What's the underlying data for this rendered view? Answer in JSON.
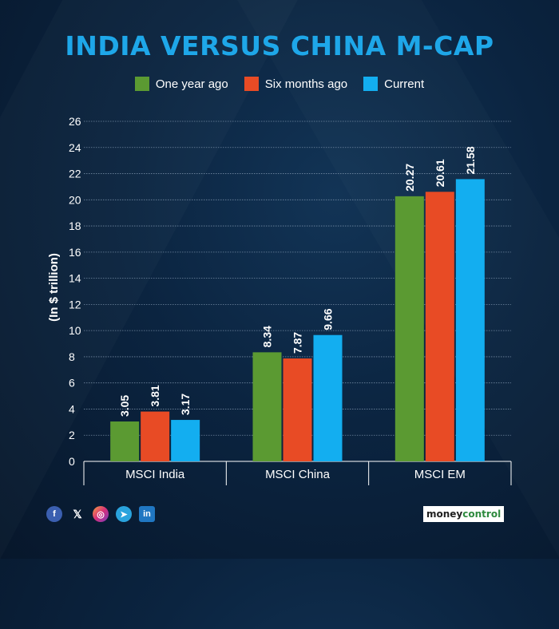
{
  "colors": {
    "title": "#1ea7e9",
    "one_year_ago": "#5b9a32",
    "six_months_ago": "#e84b25",
    "current": "#13aef0",
    "gridline": "#8aa0b8"
  },
  "chart_data": {
    "type": "bar",
    "title": "INDIA VERSUS CHINA M-CAP",
    "ylabel": "(In $ trillion)",
    "xlabel": "",
    "ylim": [
      0,
      26
    ],
    "yticks": [
      0,
      2,
      4,
      6,
      8,
      10,
      12,
      14,
      16,
      18,
      20,
      22,
      24,
      26
    ],
    "categories": [
      "MSCI India",
      "MSCI China",
      "MSCI EM"
    ],
    "series": [
      {
        "name": "One year ago",
        "values": [
          3.05,
          8.34,
          20.27
        ],
        "labels": [
          "3.05",
          "8.34",
          "20.27"
        ]
      },
      {
        "name": "Six months ago",
        "values": [
          3.81,
          7.87,
          20.61
        ],
        "labels": [
          "3.81",
          "7.87",
          "20.61"
        ]
      },
      {
        "name": "Current",
        "values": [
          3.17,
          9.66,
          21.58
        ],
        "labels": [
          "3.17",
          "9.66",
          "21.58"
        ]
      }
    ],
    "grid": true,
    "legend": "top-center"
  },
  "footer": {
    "social_icons": [
      "facebook-icon",
      "x-icon",
      "instagram-icon",
      "telegram-icon",
      "linkedin-icon"
    ],
    "social_glyphs": [
      "f",
      "𝕏",
      "◎",
      "➤",
      "in"
    ],
    "brand_part1": "money",
    "brand_part2": "control"
  }
}
